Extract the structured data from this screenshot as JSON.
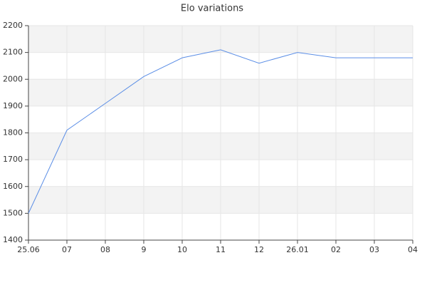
{
  "chart_data": {
    "type": "line",
    "title": "Elo variations",
    "categories": [
      "25.06",
      "07",
      "08",
      "9",
      "10",
      "11",
      "12",
      "26.01",
      "02",
      "03",
      "04"
    ],
    "values": [
      1500,
      1810,
      1910,
      2010,
      2080,
      2110,
      2060,
      2100,
      2080,
      2080,
      2080
    ],
    "color": "#5b8ee6",
    "ylim": [
      1400,
      2200
    ],
    "yticks": [
      1400,
      1500,
      1600,
      1700,
      1800,
      1900,
      2000,
      2100,
      2200
    ],
    "grid": true,
    "bands": true
  }
}
